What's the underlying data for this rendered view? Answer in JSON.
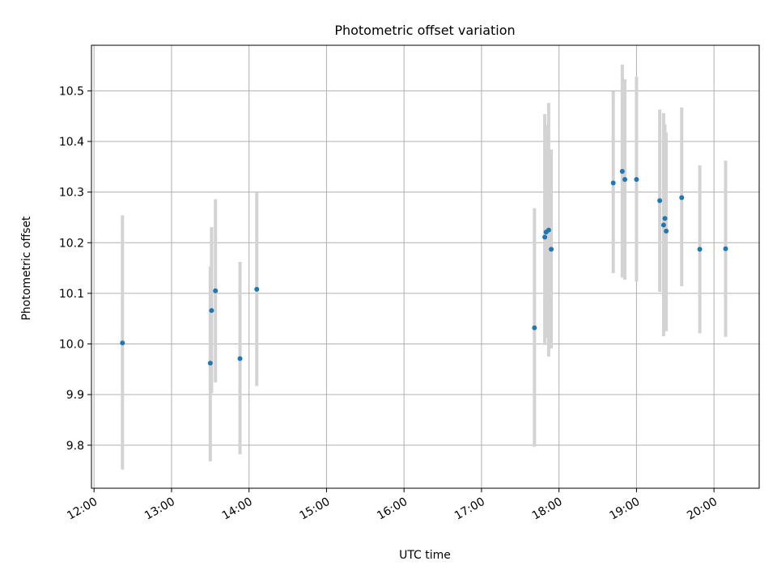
{
  "chart_data": {
    "type": "scatter",
    "title": "Photometric offset variation",
    "xlabel": "UTC time",
    "ylabel": "Photometric offset",
    "x_axis_kind": "time",
    "xlim": [
      "11:58",
      "20:35"
    ],
    "ylim": [
      9.715,
      10.59
    ],
    "x_ticks": [
      "12:00",
      "13:00",
      "14:00",
      "15:00",
      "16:00",
      "17:00",
      "18:00",
      "19:00",
      "20:00"
    ],
    "y_ticks": [
      "9.8",
      "9.9",
      "10.0",
      "10.1",
      "10.2",
      "10.3",
      "10.4",
      "10.5"
    ],
    "grid": true,
    "colors": {
      "marker": "#1f77b4",
      "errorbar": "#d3d3d3",
      "grid": "#b0b0b0"
    },
    "points": [
      {
        "time": "12:22",
        "y": 10.002,
        "ylow": 9.752,
        "yhigh": 10.254
      },
      {
        "time": "13:30",
        "y": 9.962,
        "ylow": 9.768,
        "yhigh": 10.153
      },
      {
        "time": "13:31",
        "y": 10.066,
        "ylow": 9.903,
        "yhigh": 10.231
      },
      {
        "time": "13:34",
        "y": 10.105,
        "ylow": 9.924,
        "yhigh": 10.286
      },
      {
        "time": "13:53",
        "y": 9.971,
        "ylow": 9.782,
        "yhigh": 10.162
      },
      {
        "time": "14:06",
        "y": 10.108,
        "ylow": 9.917,
        "yhigh": 10.299
      },
      {
        "time": "17:41",
        "y": 10.032,
        "ylow": 9.797,
        "yhigh": 10.268
      },
      {
        "time": "17:49",
        "y": 10.211,
        "ylow": 9.998,
        "yhigh": 10.454
      },
      {
        "time": "17:50",
        "y": 10.221,
        "ylow": 10.012,
        "yhigh": 10.432
      },
      {
        "time": "17:52",
        "y": 10.225,
        "ylow": 9.975,
        "yhigh": 10.476
      },
      {
        "time": "17:54",
        "y": 10.187,
        "ylow": 9.991,
        "yhigh": 10.384
      },
      {
        "time": "18:42",
        "y": 10.318,
        "ylow": 10.14,
        "yhigh": 10.499
      },
      {
        "time": "18:49",
        "y": 10.341,
        "ylow": 10.131,
        "yhigh": 10.552
      },
      {
        "time": "18:51",
        "y": 10.325,
        "ylow": 10.127,
        "yhigh": 10.523
      },
      {
        "time": "19:00",
        "y": 10.325,
        "ylow": 10.123,
        "yhigh": 10.528
      },
      {
        "time": "19:18",
        "y": 10.283,
        "ylow": 10.103,
        "yhigh": 10.463
      },
      {
        "time": "19:21",
        "y": 10.235,
        "ylow": 10.015,
        "yhigh": 10.456
      },
      {
        "time": "19:22",
        "y": 10.248,
        "ylow": 10.072,
        "yhigh": 10.434
      },
      {
        "time": "19:23",
        "y": 10.223,
        "ylow": 10.025,
        "yhigh": 10.418
      },
      {
        "time": "19:35",
        "y": 10.289,
        "ylow": 10.114,
        "yhigh": 10.467
      },
      {
        "time": "19:49",
        "y": 10.187,
        "ylow": 10.021,
        "yhigh": 10.353
      },
      {
        "time": "20:09",
        "y": 10.188,
        "ylow": 10.014,
        "yhigh": 10.362
      }
    ]
  }
}
